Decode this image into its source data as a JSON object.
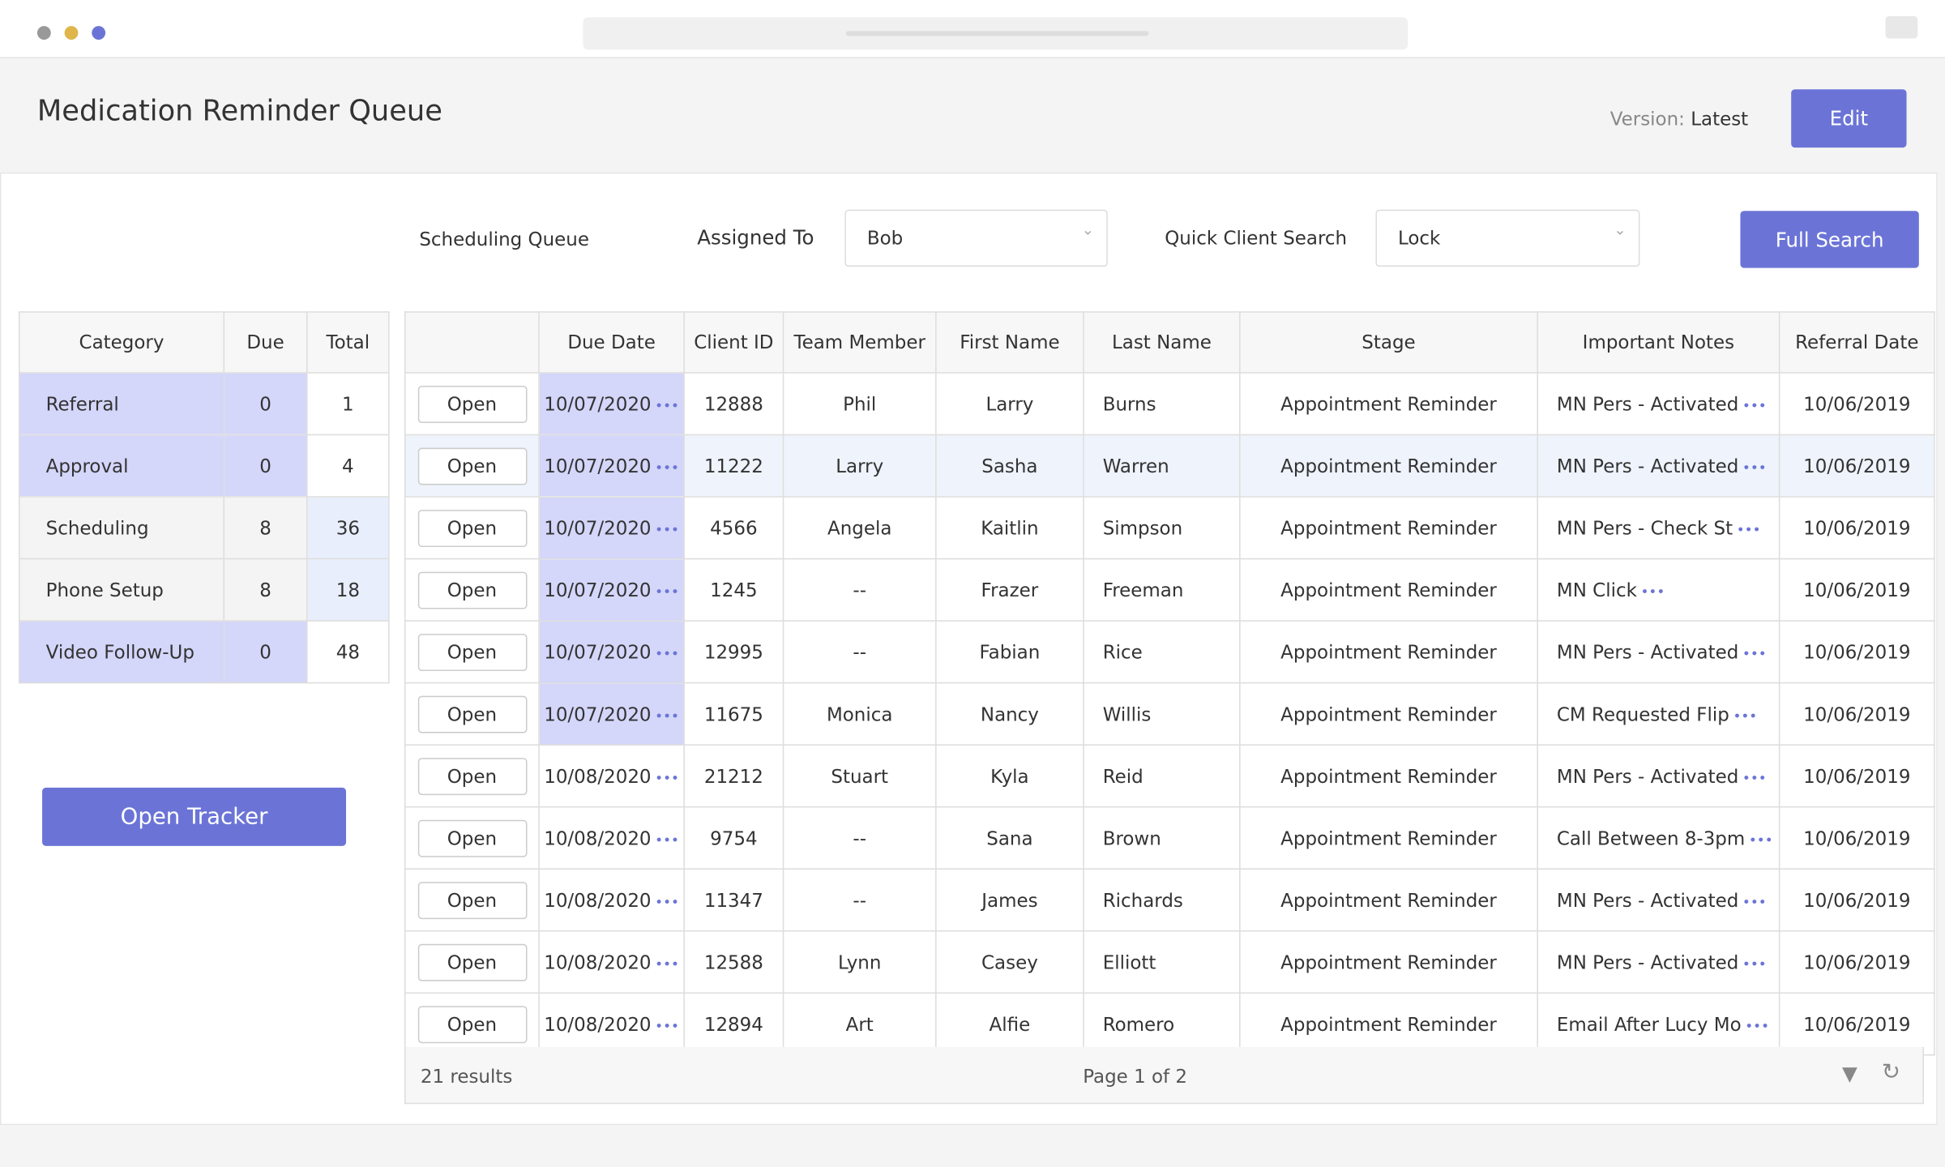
{
  "header": {
    "title": "Medication Reminder Queue",
    "version_label": "Version:",
    "version_value": "Latest",
    "edit_button": "Edit"
  },
  "filters": {
    "queue_label": "Scheduling Queue",
    "assigned_label": "Assigned To",
    "assigned_value": "Bob",
    "search_label": "Quick Client Search",
    "search_value": "Lock",
    "search_button": "Full Search"
  },
  "summary": {
    "columns": [
      "Category",
      "Due",
      "Total"
    ],
    "rows": [
      [
        "Referral",
        0,
        1
      ],
      [
        "Approval",
        0,
        4
      ],
      [
        "Scheduling",
        8,
        36
      ],
      [
        "Phone Setup",
        8,
        18
      ],
      [
        "Video Follow-Up",
        0,
        48
      ]
    ]
  },
  "tracker_button": "Open Tracker",
  "table": {
    "columns": [
      "Due Date",
      "Client ID",
      "Team Member",
      "First Name",
      "Last Name",
      "Stage",
      "Important Notes",
      "Referral Date"
    ],
    "open_label": "Open",
    "rows": [
      [
        "10/07/2020",
        12888,
        "Phil",
        "Larry",
        "Burns",
        "Appointment Reminder",
        "MN Pers - Activated",
        "10/06/2019"
      ],
      [
        "10/07/2020",
        11222,
        "Larry",
        "Sasha",
        "Warren",
        "Appointment Reminder",
        "MN Pers - Activated",
        "10/06/2019"
      ],
      [
        "10/07/2020",
        4566,
        "Angela",
        "Kaitlin",
        "Simpson",
        "Appointment Reminder",
        "MN Pers - Check St",
        "10/06/2019"
      ],
      [
        "10/07/2020",
        1245,
        "--",
        "Frazer",
        "Freeman",
        "Appointment Reminder",
        "MN Click",
        "10/06/2019"
      ],
      [
        "10/07/2020",
        12995,
        "--",
        "Fabian",
        "Rice",
        "Appointment Reminder",
        "MN Pers - Activated",
        "10/06/2019"
      ],
      [
        "10/07/2020",
        11675,
        "Monica",
        "Nancy",
        "Willis",
        "Appointment Reminder",
        "CM Requested Flip",
        "10/06/2019"
      ],
      [
        "10/08/2020",
        21212,
        "Stuart",
        "Kyla",
        "Reid",
        "Appointment Reminder",
        "MN Pers - Activated",
        "10/06/2019"
      ],
      [
        "10/08/2020",
        9754,
        "--",
        "Sana",
        "Brown",
        "Appointment Reminder",
        "Call Between 8-3pm",
        "10/06/2019"
      ],
      [
        "10/08/2020",
        11347,
        "--",
        "James",
        "Richards",
        "Appointment Reminder",
        "MN Pers - Activated",
        "10/06/2019"
      ],
      [
        "10/08/2020",
        12588,
        "Lynn",
        "Casey",
        "Elliott",
        "Appointment Reminder",
        "MN Pers - Activated",
        "10/06/2019"
      ],
      [
        "10/08/2020",
        12894,
        "Art",
        "Alfie",
        "Romero",
        "Appointment Reminder",
        "Email After Lucy Mo",
        "10/06/2019"
      ]
    ]
  },
  "footer": {
    "results": "21 results",
    "page": "Page 1 of 2"
  }
}
